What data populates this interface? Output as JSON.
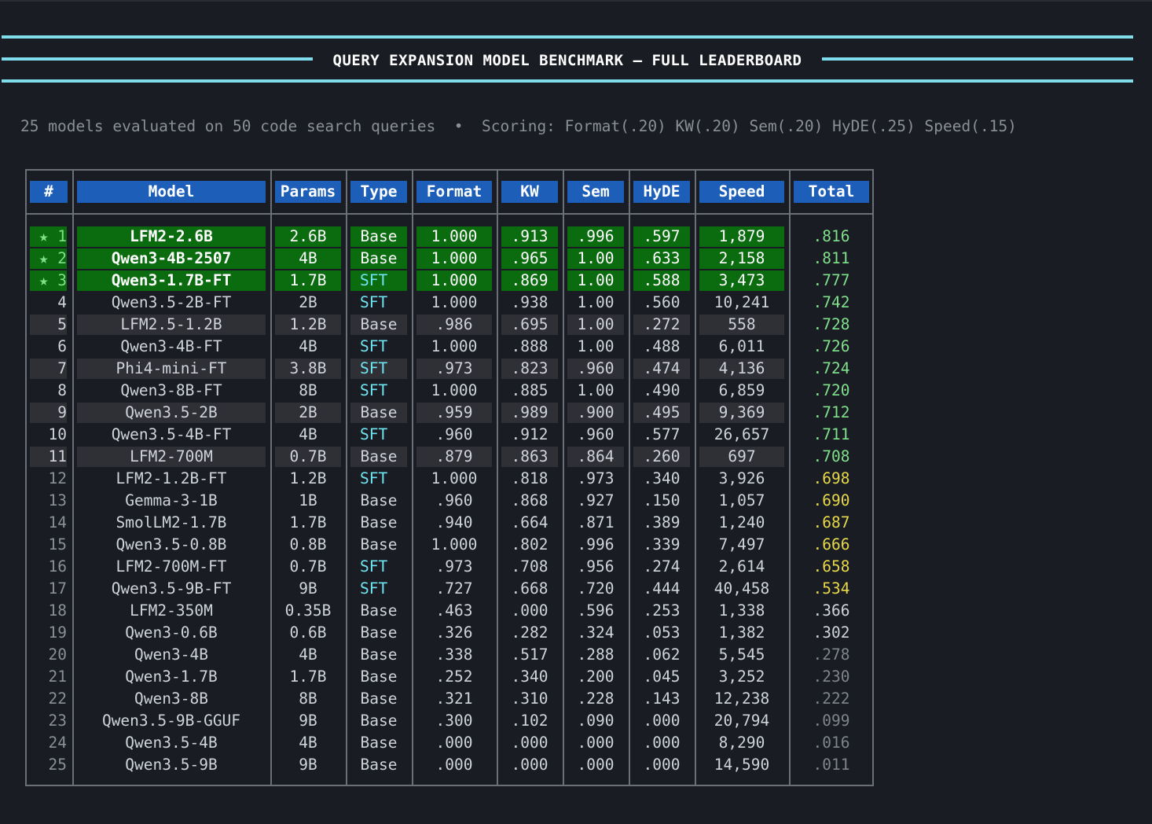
{
  "header": {
    "title": "QUERY EXPANSION MODEL BENCHMARK — FULL LEADERBOARD",
    "subtitle": "25 models evaluated on 50 code search queries  •  Scoring: Format(.20) KW(.20) Sem(.20) HyDE(.25) Speed(.15)"
  },
  "colors": {
    "accent_line": "#7fdcec",
    "header_bg": "#1d5fb8",
    "top_rank_bg": "#0a6b0f",
    "stripe_bg": "#2f3035",
    "sft_text": "#6fe3f0",
    "total_green": "#7fe08a",
    "total_yellow": "#e6d84a"
  },
  "icons": {
    "top_rank": "star-icon"
  },
  "table": {
    "columns": [
      "#",
      "Model",
      "Params",
      "Type",
      "Format",
      "KW",
      "Sem",
      "HyDE",
      "Speed",
      "Total"
    ],
    "rows": [
      {
        "rank": "★ 1",
        "model": "LFM2-2.6B",
        "params": "2.6B",
        "type": "Base",
        "format": "1.000",
        "kw": ".913",
        "sem": ".996",
        "hyde": ".597",
        "speed": "1,879",
        "total": ".816"
      },
      {
        "rank": "★ 2",
        "model": "Qwen3-4B-2507",
        "params": "4B",
        "type": "Base",
        "format": "1.000",
        "kw": ".965",
        "sem": "1.00",
        "hyde": ".633",
        "speed": "2,158",
        "total": ".811"
      },
      {
        "rank": "★ 3",
        "model": "Qwen3-1.7B-FT",
        "params": "1.7B",
        "type": "SFT",
        "format": "1.000",
        "kw": ".869",
        "sem": "1.00",
        "hyde": ".588",
        "speed": "3,473",
        "total": ".777"
      },
      {
        "rank": "4",
        "model": "Qwen3.5-2B-FT",
        "params": "2B",
        "type": "SFT",
        "format": "1.000",
        "kw": ".938",
        "sem": "1.00",
        "hyde": ".560",
        "speed": "10,241",
        "total": ".742"
      },
      {
        "rank": "5",
        "model": "LFM2.5-1.2B",
        "params": "1.2B",
        "type": "Base",
        "format": ".986",
        "kw": ".695",
        "sem": "1.00",
        "hyde": ".272",
        "speed": "558",
        "total": ".728"
      },
      {
        "rank": "6",
        "model": "Qwen3-4B-FT",
        "params": "4B",
        "type": "SFT",
        "format": "1.000",
        "kw": ".888",
        "sem": "1.00",
        "hyde": ".488",
        "speed": "6,011",
        "total": ".726"
      },
      {
        "rank": "7",
        "model": "Phi4-mini-FT",
        "params": "3.8B",
        "type": "SFT",
        "format": ".973",
        "kw": ".823",
        "sem": ".960",
        "hyde": ".474",
        "speed": "4,136",
        "total": ".724"
      },
      {
        "rank": "8",
        "model": "Qwen3-8B-FT",
        "params": "8B",
        "type": "SFT",
        "format": "1.000",
        "kw": ".885",
        "sem": "1.00",
        "hyde": ".490",
        "speed": "6,859",
        "total": ".720"
      },
      {
        "rank": "9",
        "model": "Qwen3.5-2B",
        "params": "2B",
        "type": "Base",
        "format": ".959",
        "kw": ".989",
        "sem": ".900",
        "hyde": ".495",
        "speed": "9,369",
        "total": ".712"
      },
      {
        "rank": "10",
        "model": "Qwen3.5-4B-FT",
        "params": "4B",
        "type": "SFT",
        "format": ".960",
        "kw": ".912",
        "sem": ".960",
        "hyde": ".577",
        "speed": "26,657",
        "total": ".711"
      },
      {
        "rank": "11",
        "model": "LFM2-700M",
        "params": "0.7B",
        "type": "Base",
        "format": ".879",
        "kw": ".863",
        "sem": ".864",
        "hyde": ".260",
        "speed": "697",
        "total": ".708"
      },
      {
        "rank": "12",
        "model": "LFM2-1.2B-FT",
        "params": "1.2B",
        "type": "SFT",
        "format": "1.000",
        "kw": ".818",
        "sem": ".973",
        "hyde": ".340",
        "speed": "3,926",
        "total": ".698"
      },
      {
        "rank": "13",
        "model": "Gemma-3-1B",
        "params": "1B",
        "type": "Base",
        "format": ".960",
        "kw": ".868",
        "sem": ".927",
        "hyde": ".150",
        "speed": "1,057",
        "total": ".690"
      },
      {
        "rank": "14",
        "model": "SmolLM2-1.7B",
        "params": "1.7B",
        "type": "Base",
        "format": ".940",
        "kw": ".664",
        "sem": ".871",
        "hyde": ".389",
        "speed": "1,240",
        "total": ".687"
      },
      {
        "rank": "15",
        "model": "Qwen3.5-0.8B",
        "params": "0.8B",
        "type": "Base",
        "format": "1.000",
        "kw": ".802",
        "sem": ".996",
        "hyde": ".339",
        "speed": "7,497",
        "total": ".666"
      },
      {
        "rank": "16",
        "model": "LFM2-700M-FT",
        "params": "0.7B",
        "type": "SFT",
        "format": ".973",
        "kw": ".708",
        "sem": ".956",
        "hyde": ".274",
        "speed": "2,614",
        "total": ".658"
      },
      {
        "rank": "17",
        "model": "Qwen3.5-9B-FT",
        "params": "9B",
        "type": "SFT",
        "format": ".727",
        "kw": ".668",
        "sem": ".720",
        "hyde": ".444",
        "speed": "40,458",
        "total": ".534"
      },
      {
        "rank": "18",
        "model": "LFM2-350M",
        "params": "0.35B",
        "type": "Base",
        "format": ".463",
        "kw": ".000",
        "sem": ".596",
        "hyde": ".253",
        "speed": "1,338",
        "total": ".366"
      },
      {
        "rank": "19",
        "model": "Qwen3-0.6B",
        "params": "0.6B",
        "type": "Base",
        "format": ".326",
        "kw": ".282",
        "sem": ".324",
        "hyde": ".053",
        "speed": "1,382",
        "total": ".302"
      },
      {
        "rank": "20",
        "model": "Qwen3-4B",
        "params": "4B",
        "type": "Base",
        "format": ".338",
        "kw": ".517",
        "sem": ".288",
        "hyde": ".062",
        "speed": "5,545",
        "total": ".278"
      },
      {
        "rank": "21",
        "model": "Qwen3-1.7B",
        "params": "1.7B",
        "type": "Base",
        "format": ".252",
        "kw": ".340",
        "sem": ".200",
        "hyde": ".045",
        "speed": "3,252",
        "total": ".230"
      },
      {
        "rank": "22",
        "model": "Qwen3-8B",
        "params": "8B",
        "type": "Base",
        "format": ".321",
        "kw": ".310",
        "sem": ".228",
        "hyde": ".143",
        "speed": "12,238",
        "total": ".222"
      },
      {
        "rank": "23",
        "model": "Qwen3.5-9B-GGUF",
        "params": "9B",
        "type": "Base",
        "format": ".300",
        "kw": ".102",
        "sem": ".090",
        "hyde": ".000",
        "speed": "20,794",
        "total": ".099"
      },
      {
        "rank": "24",
        "model": "Qwen3.5-4B",
        "params": "4B",
        "type": "Base",
        "format": ".000",
        "kw": ".000",
        "sem": ".000",
        "hyde": ".000",
        "speed": "8,290",
        "total": ".016"
      },
      {
        "rank": "25",
        "model": "Qwen3.5-9B",
        "params": "9B",
        "type": "Base",
        "format": ".000",
        "kw": ".000",
        "sem": ".000",
        "hyde": ".000",
        "speed": "14,590",
        "total": ".011"
      }
    ]
  }
}
